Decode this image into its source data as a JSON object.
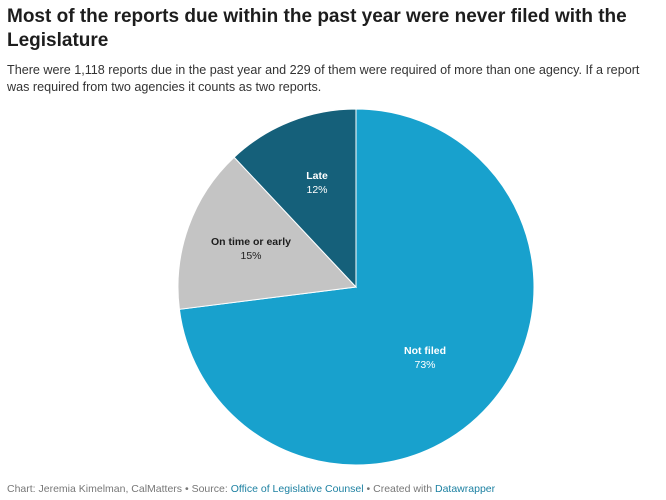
{
  "chart_data": {
    "type": "pie",
    "title": "Most of the reports due within the past year were never filed with the Legislature",
    "subtitle": "There were 1,118 reports due in the past year and 229 of them were required of more than one agency. If a report was required from two agencies it counts as two reports.",
    "slices": [
      {
        "label": "Not filed",
        "value": 73,
        "value_label": "73%",
        "color": "#18a1cd",
        "text_color": "#ffffff"
      },
      {
        "label": "On time or early",
        "value": 15,
        "value_label": "15%",
        "color": "#c4c4c4",
        "text_color": "#1d1d1d"
      },
      {
        "label": "Late",
        "value": 12,
        "value_label": "12%",
        "color": "#15607a",
        "text_color": "#ffffff"
      }
    ]
  },
  "footer": {
    "chart_credit": "Chart: Jeremia Kimelman, CalMatters",
    "source_prefix": "Source:",
    "source_link": "Office of Legislative Counsel",
    "created_prefix": "Created with",
    "created_link": "Datawrapper",
    "separator": "•"
  }
}
